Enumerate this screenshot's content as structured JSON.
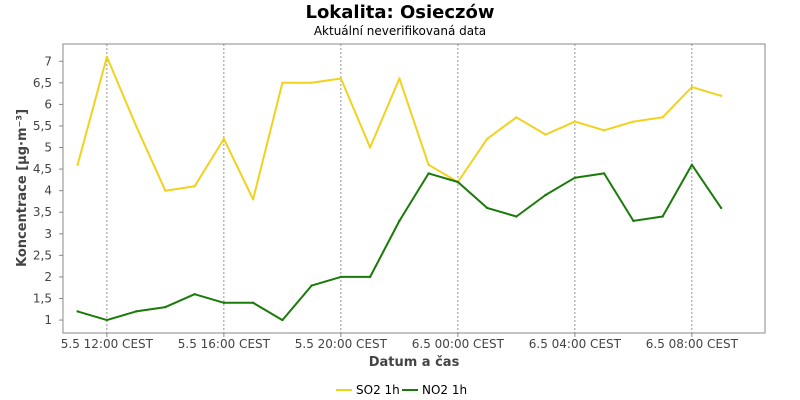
{
  "chart_data": {
    "type": "line",
    "title": "Lokalita: Osieczów",
    "subtitle": "Aktuální neverifikovaná data",
    "xlabel": "Datum a čas",
    "ylabel": "Koncentrace [µg·m⁻³]",
    "ylim": [
      0.7,
      7.4
    ],
    "yticks": [
      "1",
      "1,5",
      "2",
      "2,5",
      "3",
      "3,5",
      "4",
      "4,5",
      "5",
      "5,5",
      "6",
      "6,5",
      "7"
    ],
    "ytick_values": [
      1,
      1.5,
      2,
      2.5,
      3,
      3.5,
      4,
      4.5,
      5,
      5.5,
      6,
      6.5,
      7
    ],
    "x_hours": [
      11,
      12,
      13,
      14,
      15,
      16,
      17,
      18,
      19,
      20,
      21,
      22,
      23,
      24,
      25,
      26,
      27,
      28,
      29,
      30,
      31,
      32,
      33
    ],
    "xlim": [
      10.5,
      34.5
    ],
    "xticks": [
      {
        "hour": 12,
        "label": "5.5 12:00 CEST"
      },
      {
        "hour": 16,
        "label": "5.5 16:00 CEST"
      },
      {
        "hour": 20,
        "label": "5.5 20:00 CEST"
      },
      {
        "hour": 24,
        "label": "6.5 00:00 CEST"
      },
      {
        "hour": 28,
        "label": "6.5 04:00 CEST"
      },
      {
        "hour": 32,
        "label": "6.5 08:00 CEST"
      }
    ],
    "grid": true,
    "legend_position": "bottom-center",
    "series": [
      {
        "name": "SO2 1h",
        "color": "#f2d21f",
        "values": [
          4.6,
          7.1,
          5.5,
          4.0,
          4.1,
          5.2,
          3.8,
          6.5,
          6.5,
          6.6,
          5.0,
          6.6,
          4.6,
          4.2,
          5.2,
          5.7,
          5.3,
          5.6,
          5.4,
          5.6,
          5.7,
          6.4,
          6.2
        ]
      },
      {
        "name": "NO2 1h",
        "color": "#1a7a0a",
        "values": [
          1.2,
          1.0,
          1.2,
          1.3,
          1.6,
          1.4,
          1.4,
          1.0,
          1.8,
          2.0,
          2.0,
          3.3,
          4.4,
          4.2,
          3.6,
          3.4,
          3.9,
          4.3,
          4.4,
          3.3,
          3.4,
          4.6,
          3.6
        ]
      }
    ]
  }
}
